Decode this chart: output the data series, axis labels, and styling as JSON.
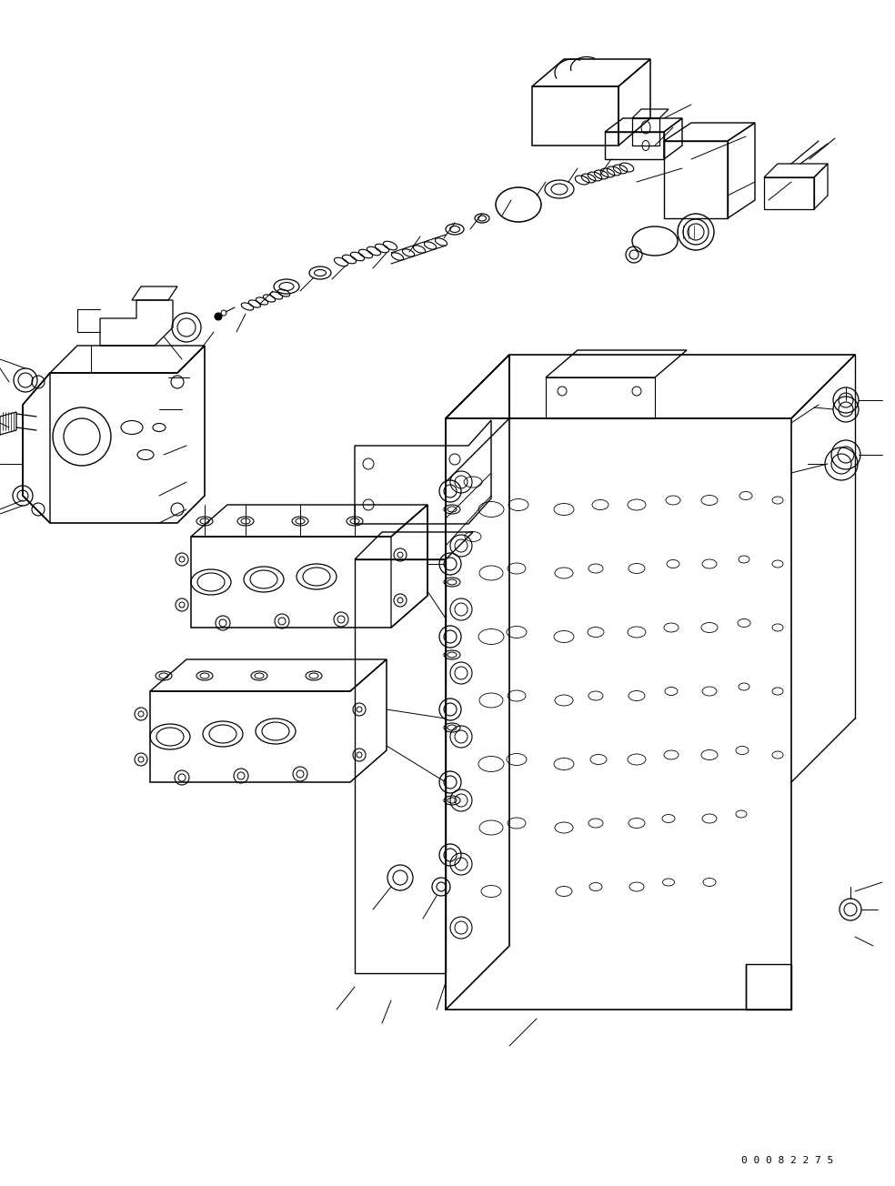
{
  "background_color": "#ffffff",
  "line_color": "#000000",
  "figure_width": 9.84,
  "figure_height": 13.04,
  "dpi": 100,
  "watermark_text": "0 0 0 8 2 2 7 5",
  "watermark_fontsize": 8
}
